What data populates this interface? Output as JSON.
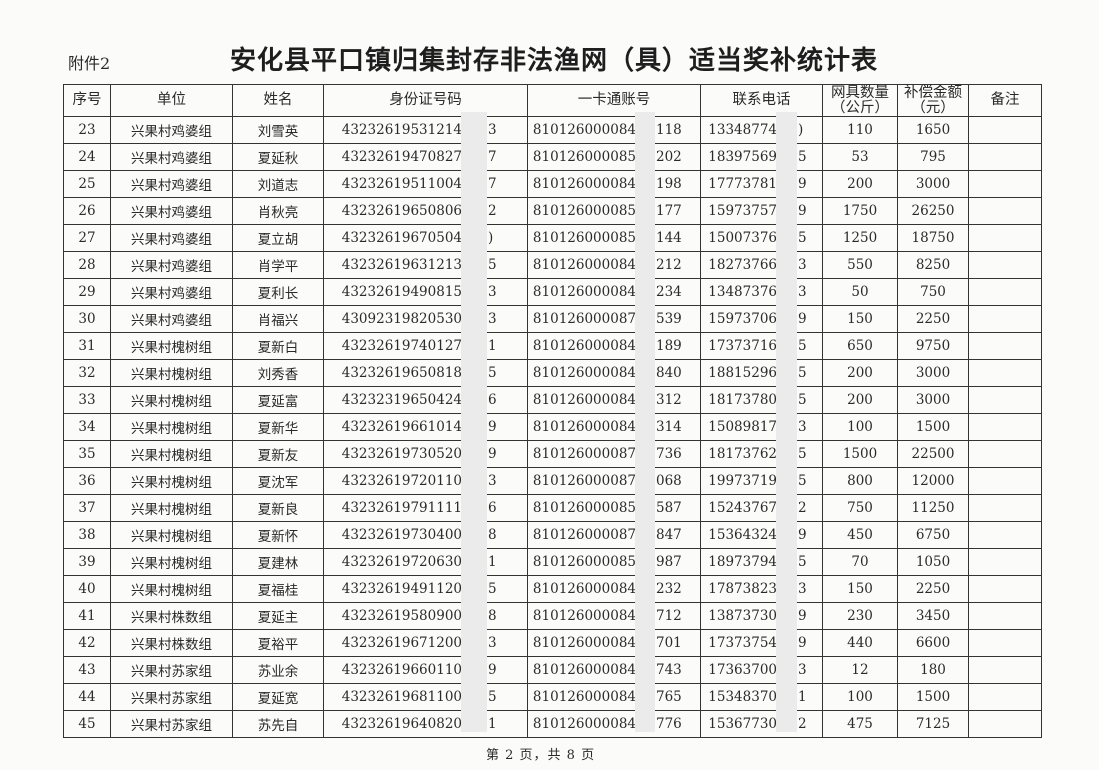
{
  "attachment_label": "附件2",
  "title": "安化县平口镇归集封存非法渔网（具）适当奖补统计表",
  "headers": [
    "序号",
    "单位",
    "姓名",
    "身份证号码",
    "一卡通账号",
    "联系电话",
    "网具数量（公斤）",
    "补偿金额（元）",
    "备注"
  ],
  "rows": [
    {
      "no": "23",
      "unit": "兴果村鸡婆组",
      "name": "刘雪英",
      "id_l": "43232619531214",
      "id_r": "3",
      "acct_l": "810126000084",
      "acct_r": "118",
      "phone_l": "13348774",
      "phone_r": ")",
      "qty": "110",
      "amount": "1650",
      "note": ""
    },
    {
      "no": "24",
      "unit": "兴果村鸡婆组",
      "name": "夏延秋",
      "id_l": "43232619470827",
      "id_r": "7",
      "acct_l": "810126000085",
      "acct_r": "202",
      "phone_l": "18397569",
      "phone_r": "5",
      "qty": "53",
      "amount": "795",
      "note": ""
    },
    {
      "no": "25",
      "unit": "兴果村鸡婆组",
      "name": "刘道志",
      "id_l": "43232619511004",
      "id_r": "7",
      "acct_l": "810126000084",
      "acct_r": "198",
      "phone_l": "17773781",
      "phone_r": "9",
      "qty": "200",
      "amount": "3000",
      "note": ""
    },
    {
      "no": "26",
      "unit": "兴果村鸡婆组",
      "name": "肖秋亮",
      "id_l": "43232619650806",
      "id_r": "2",
      "acct_l": "810126000085",
      "acct_r": "177",
      "phone_l": "15973757",
      "phone_r": "9",
      "qty": "1750",
      "amount": "26250",
      "note": ""
    },
    {
      "no": "27",
      "unit": "兴果村鸡婆组",
      "name": "夏立胡",
      "id_l": "43232619670504",
      "id_r": ")",
      "acct_l": "810126000085",
      "acct_r": "144",
      "phone_l": "15007376",
      "phone_r": "5",
      "qty": "1250",
      "amount": "18750",
      "note": ""
    },
    {
      "no": "28",
      "unit": "兴果村鸡婆组",
      "name": "肖学平",
      "id_l": "43232619631213",
      "id_r": "5",
      "acct_l": "810126000084",
      "acct_r": "212",
      "phone_l": "18273766",
      "phone_r": "3",
      "qty": "550",
      "amount": "8250",
      "note": ""
    },
    {
      "no": "29",
      "unit": "兴果村鸡婆组",
      "name": "夏利长",
      "id_l": "43232619490815",
      "id_r": "3",
      "acct_l": "810126000084",
      "acct_r": "234",
      "phone_l": "13487376",
      "phone_r": "3",
      "qty": "50",
      "amount": "750",
      "note": ""
    },
    {
      "no": "30",
      "unit": "兴果村鸡婆组",
      "name": "肖福兴",
      "id_l": "43092319820530",
      "id_r": "3",
      "acct_l": "810126000087",
      "acct_r": "539",
      "phone_l": "15973706",
      "phone_r": "9",
      "qty": "150",
      "amount": "2250",
      "note": ""
    },
    {
      "no": "31",
      "unit": "兴果村槐树组",
      "name": "夏新白",
      "id_l": "43232619740127",
      "id_r": "1",
      "acct_l": "810126000084",
      "acct_r": "189",
      "phone_l": "17373716",
      "phone_r": "5",
      "qty": "650",
      "amount": "9750",
      "note": ""
    },
    {
      "no": "32",
      "unit": "兴果村槐树组",
      "name": "刘秀香",
      "id_l": "43232619650818",
      "id_r": "5",
      "acct_l": "810126000084",
      "acct_r": "840",
      "phone_l": "18815296",
      "phone_r": "5",
      "qty": "200",
      "amount": "3000",
      "note": ""
    },
    {
      "no": "33",
      "unit": "兴果村槐树组",
      "name": "夏延富",
      "id_l": "43232319650424",
      "id_r": "6",
      "acct_l": "810126000084",
      "acct_r": "312",
      "phone_l": "18173780",
      "phone_r": "5",
      "qty": "200",
      "amount": "3000",
      "note": ""
    },
    {
      "no": "34",
      "unit": "兴果村槐树组",
      "name": "夏新华",
      "id_l": "43232619661014",
      "id_r": "9",
      "acct_l": "810126000084",
      "acct_r": "314",
      "phone_l": "15089817",
      "phone_r": "3",
      "qty": "100",
      "amount": "1500",
      "note": ""
    },
    {
      "no": "35",
      "unit": "兴果村槐树组",
      "name": "夏新友",
      "id_l": "43232619730520",
      "id_r": "9",
      "acct_l": "810126000087",
      "acct_r": "736",
      "phone_l": "18173762",
      "phone_r": "5",
      "qty": "1500",
      "amount": "22500",
      "note": ""
    },
    {
      "no": "36",
      "unit": "兴果村槐树组",
      "name": "夏沈军",
      "id_l": "43232619720110",
      "id_r": "3",
      "acct_l": "810126000087",
      "acct_r": "068",
      "phone_l": "19973719",
      "phone_r": "5",
      "qty": "800",
      "amount": "12000",
      "note": ""
    },
    {
      "no": "37",
      "unit": "兴果村槐树组",
      "name": "夏新良",
      "id_l": "43232619791111",
      "id_r": "6",
      "acct_l": "810126000085",
      "acct_r": "587",
      "phone_l": "15243767",
      "phone_r": "2",
      "qty": "750",
      "amount": "11250",
      "note": ""
    },
    {
      "no": "38",
      "unit": "兴果村槐树组",
      "name": "夏新怀",
      "id_l": "43232619730400",
      "id_r": "8",
      "acct_l": "810126000087",
      "acct_r": "847",
      "phone_l": "15364324",
      "phone_r": "9",
      "qty": "450",
      "amount": "6750",
      "note": ""
    },
    {
      "no": "39",
      "unit": "兴果村槐树组",
      "name": "夏建林",
      "id_l": "43232619720630",
      "id_r": "1",
      "acct_l": "810126000085",
      "acct_r": "987",
      "phone_l": "18973794",
      "phone_r": "5",
      "qty": "70",
      "amount": "1050",
      "note": ""
    },
    {
      "no": "40",
      "unit": "兴果村槐树组",
      "name": "夏福桂",
      "id_l": "43232619491120",
      "id_r": "5",
      "acct_l": "810126000084",
      "acct_r": "232",
      "phone_l": "17873823",
      "phone_r": "3",
      "qty": "150",
      "amount": "2250",
      "note": ""
    },
    {
      "no": "41",
      "unit": "兴果村株数组",
      "name": "夏延主",
      "id_l": "43232619580900",
      "id_r": "8",
      "acct_l": "810126000084",
      "acct_r": "712",
      "phone_l": "13873730",
      "phone_r": "9",
      "qty": "230",
      "amount": "3450",
      "note": ""
    },
    {
      "no": "42",
      "unit": "兴果村株数组",
      "name": "夏裕平",
      "id_l": "43232619671200",
      "id_r": "3",
      "acct_l": "810126000084",
      "acct_r": "701",
      "phone_l": "17373754",
      "phone_r": "9",
      "qty": "440",
      "amount": "6600",
      "note": ""
    },
    {
      "no": "43",
      "unit": "兴果村苏家组",
      "name": "苏业余",
      "id_l": "43232619660110",
      "id_r": "9",
      "acct_l": "810126000084",
      "acct_r": "743",
      "phone_l": "17363700",
      "phone_r": "3",
      "qty": "12",
      "amount": "180",
      "note": ""
    },
    {
      "no": "44",
      "unit": "兴果村苏家组",
      "name": "夏延宽",
      "id_l": "43232619681100",
      "id_r": "5",
      "acct_l": "810126000084",
      "acct_r": "765",
      "phone_l": "15348370",
      "phone_r": "1",
      "qty": "100",
      "amount": "1500",
      "note": ""
    },
    {
      "no": "45",
      "unit": "兴果村苏家组",
      "name": "苏先自",
      "id_l": "43232619640820",
      "id_r": "1",
      "acct_l": "810126000084",
      "acct_r": "776",
      "phone_l": "15367730",
      "phone_r": "2",
      "qty": "475",
      "amount": "7125",
      "note": ""
    }
  ],
  "footer": "第 2 页，共 8 页",
  "redaction_color": "#ebebeb"
}
